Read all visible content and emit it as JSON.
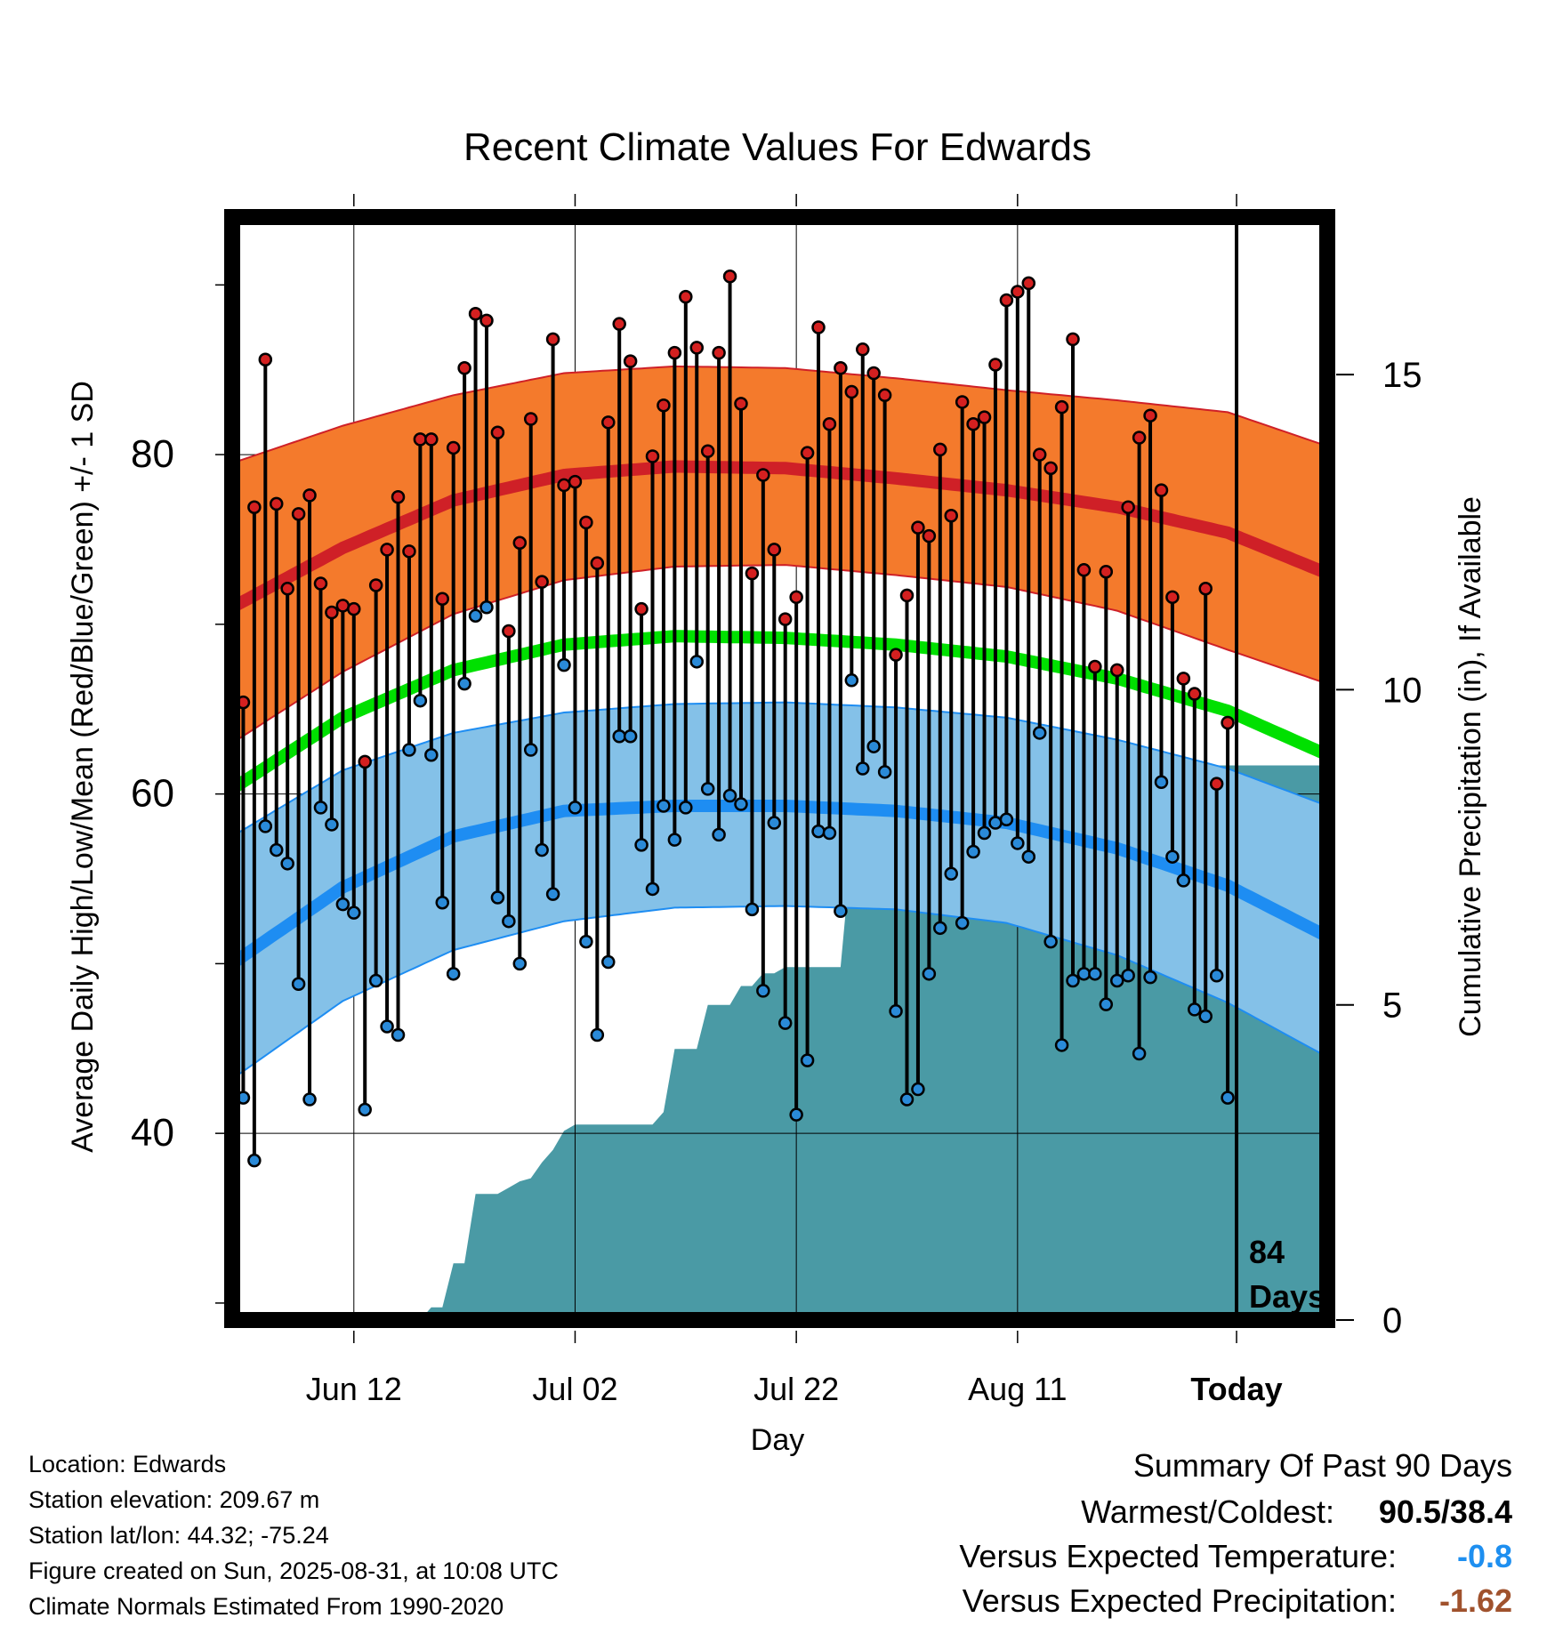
{
  "chart_data": {
    "type": "line",
    "title": "Recent Climate Values For Edwards",
    "xlabel": "Day",
    "ylabel_left": "Average Daily High/Low/Mean (Red/Blue/Green) +/- 1 SD",
    "ylabel_right": "Cumulative Precipitation (in), If Available",
    "xlim": [
      0,
      99
    ],
    "ylim_left": [
      29,
      94
    ],
    "ylim_right": [
      0,
      17.5
    ],
    "left_ticks": [
      40,
      60,
      80
    ],
    "right_ticks": [
      0,
      5,
      10,
      15
    ],
    "x_ticks": [
      {
        "day": 11,
        "label": "Jun 12"
      },
      {
        "day": 31,
        "label": "Jul 02"
      },
      {
        "day": 51,
        "label": "Jul 22"
      },
      {
        "day": 71,
        "label": "Aug 11"
      },
      {
        "day": 90.8,
        "label": "Today"
      }
    ],
    "grid": true,
    "today_line": {
      "day": 90.8,
      "label_lines": [
        "84",
        "Days"
      ]
    },
    "normals": {
      "days": [
        0,
        10,
        20,
        30,
        40,
        50,
        60,
        70,
        80,
        90,
        99
      ],
      "high_mean": [
        71,
        74.5,
        77.3,
        78.8,
        79.3,
        79.2,
        78.6,
        77.9,
        76.9,
        75.4,
        73
      ],
      "high_upper": [
        79.5,
        81.7,
        83.5,
        84.8,
        85.2,
        85.1,
        84.5,
        83.8,
        83.2,
        82.5,
        80.5
      ],
      "high_lower": [
        63,
        67.2,
        70.6,
        72.6,
        73.4,
        73.5,
        72.9,
        72.2,
        70.8,
        68.5,
        66.5
      ],
      "normal_mean": [
        60.3,
        64.5,
        67.3,
        68.8,
        69.3,
        69.2,
        68.8,
        68.1,
        66.8,
        64.9,
        62.3
      ],
      "low_mean": [
        50,
        54.5,
        57.5,
        59,
        59.3,
        59.3,
        59,
        58.3,
        56.8,
        54.6,
        51.6
      ],
      "low_upper": [
        57.5,
        61.4,
        63.6,
        64.8,
        65.3,
        65.4,
        65.1,
        64.5,
        63.2,
        61.5,
        59.3
      ],
      "low_lower": [
        43.2,
        47.8,
        50.8,
        52.5,
        53.3,
        53.4,
        53.2,
        52.4,
        50.5,
        47.7,
        44.5
      ]
    },
    "daily_high": [
      65.4,
      76.9,
      85.6,
      77.1,
      72.1,
      76.5,
      77.6,
      72.4,
      70.7,
      71.1,
      70.9,
      61.9,
      72.3,
      74.4,
      77.5,
      74.3,
      80.9,
      80.9,
      71.5,
      80.4,
      85.1,
      88.3,
      87.9,
      81.3,
      69.6,
      74.8,
      82.1,
      72.5,
      86.8,
      78.2,
      78.4,
      76,
      73.6,
      81.9,
      87.7,
      85.5,
      70.9,
      79.9,
      82.9,
      86,
      89.3,
      86.3,
      80.2,
      86,
      90.5,
      83,
      73,
      78.8,
      74.4,
      70.3,
      71.6,
      80.1,
      87.5,
      81.8,
      85.1,
      83.7,
      86.2,
      84.8,
      83.5,
      68.2,
      71.7,
      75.7,
      75.2,
      80.3,
      76.4,
      83.1,
      81.8,
      82.2,
      85.3,
      89.1,
      89.6,
      90.1,
      80,
      79.2,
      82.8,
      86.8,
      73.2,
      67.5,
      73.1,
      67.3,
      76.9,
      81,
      82.3,
      77.9,
      71.6,
      66.8,
      65.9,
      72.1,
      60.6,
      64.2
    ],
    "daily_low": [
      42.1,
      38.4,
      58.1,
      56.7,
      55.9,
      48.8,
      42,
      59.2,
      58.2,
      53.5,
      53,
      41.4,
      49,
      46.3,
      45.8,
      62.6,
      65.5,
      62.3,
      53.6,
      49.4,
      66.5,
      70.5,
      71,
      53.9,
      52.5,
      50,
      62.6,
      56.7,
      54.1,
      67.6,
      59.2,
      51.3,
      45.8,
      50.1,
      63.4,
      63.4,
      57,
      54.4,
      59.3,
      57.3,
      59.2,
      67.8,
      60.3,
      57.6,
      59.9,
      59.4,
      53.2,
      48.4,
      58.3,
      46.5,
      41.1,
      44.3,
      57.8,
      57.7,
      53.1,
      66.7,
      61.5,
      62.8,
      61.3,
      47.2,
      42,
      42.6,
      49.4,
      52.1,
      55.3,
      52.4,
      56.6,
      57.7,
      58.3,
      58.5,
      57.1,
      56.3,
      63.6,
      51.3,
      45.2,
      49,
      49.4,
      49.4,
      47.6,
      49,
      49.3,
      44.7,
      49.2,
      60.7,
      56.3,
      54.9,
      47.3,
      46.9,
      49.3,
      42.1
    ],
    "precip_cumulative": {
      "days": [
        0,
        17,
        18,
        19,
        20,
        21,
        22,
        23,
        24,
        25,
        26,
        27,
        28,
        29,
        30,
        31,
        32,
        33,
        34,
        35,
        38,
        39,
        40,
        41,
        42,
        43,
        44,
        45,
        46,
        47,
        48,
        49,
        50,
        51,
        52,
        53,
        54,
        55,
        56,
        60,
        66,
        67,
        70,
        72,
        74,
        78,
        86,
        87,
        88,
        92,
        99
      ],
      "values": [
        0,
        0,
        0.2,
        0.2,
        0.9,
        0.9,
        2,
        2,
        2,
        2.1,
        2.2,
        2.25,
        2.5,
        2.7,
        3,
        3.1,
        3.1,
        3.1,
        3.1,
        3.1,
        3.1,
        3.3,
        4.3,
        4.3,
        4.3,
        5,
        5,
        5,
        5.3,
        5.3,
        5.5,
        5.5,
        5.6,
        5.6,
        5.6,
        5.6,
        5.6,
        5.6,
        7.5,
        7.5,
        7.5,
        7.5,
        7.5,
        7.6,
        7.7,
        7.8,
        8.2,
        8.5,
        8.8,
        8.8,
        8.8
      ]
    }
  },
  "footer": {
    "location": "Location: Edwards",
    "elevation": "Station elevation: 209.67 m",
    "latlon": "Station lat/lon: 44.32; -75.24",
    "created": "Figure created on Sun, 2025-08-31, at 10:08 UTC",
    "normals": "Climate Normals Estimated From 1990-2020"
  },
  "summary": {
    "title": "Summary Of Past 90 Days",
    "warm_cold_label": "Warmest/Coldest:",
    "warm_cold_value": "90.5/38.4",
    "temp_label": "Versus Expected Temperature:",
    "temp_value": "-0.8",
    "precip_label": "Versus Expected Precipitation:",
    "precip_value": "-1.62"
  },
  "colors": {
    "high_band": "#f47a2c",
    "high_line": "#cf2027",
    "normal_line": "#00e000",
    "low_band": "#84c1e8",
    "low_line": "#1e8df2",
    "precip_fill": "#4a9aa5",
    "high_dot": "#d42020",
    "low_dot": "#2a8ad8",
    "temp_anomaly": "#1e8ff0",
    "precip_anomaly": "#a0522d"
  }
}
